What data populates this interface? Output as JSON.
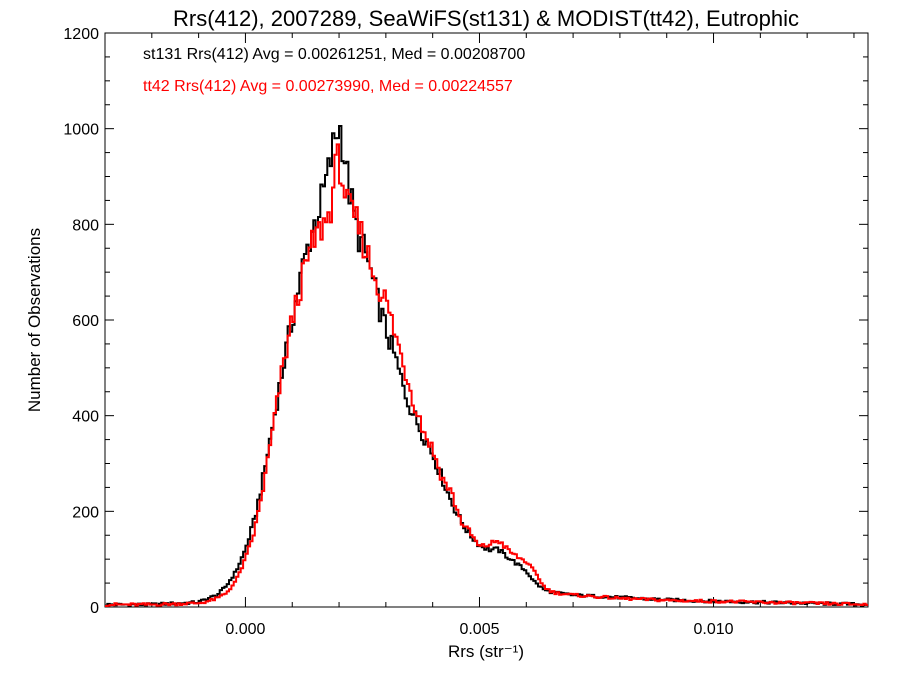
{
  "colors": {
    "series_1": "#000000",
    "series_2": "#ff0000"
  },
  "chart_data": {
    "type": "histogram-step",
    "title": "Rrs(412), 2007289, SeaWiFS(st131) & MODIST(tt42), Eutrophic",
    "xlabel": "Rrs (str⁻¹)",
    "ylabel": "Number of Observations",
    "xlim": [
      -0.003,
      0.0133
    ],
    "ylim": [
      0,
      1200
    ],
    "xticks": [
      0.0,
      0.005,
      0.01
    ],
    "xtick_labels": [
      "0.000",
      "0.005",
      "0.010"
    ],
    "yticks": [
      0,
      200,
      400,
      600,
      800,
      1000,
      1200
    ],
    "ytick_labels": [
      "0",
      "200",
      "400",
      "600",
      "800",
      "1000",
      "1200"
    ],
    "grid": false,
    "legend_position": "top-left",
    "legend_entries": [
      "st131 Rrs(412) Avg = 0.00261251, Med = 0.00208700",
      "tt42 Rrs(412) Avg = 0.00273990, Med = 0.00224557"
    ],
    "series": [
      {
        "name": "st131",
        "color": "#000000",
        "x": [
          -0.003,
          -0.002,
          -0.001,
          -0.0008,
          -0.0006,
          -0.0004,
          -0.0002,
          0.0,
          0.0002,
          0.0004,
          0.0006,
          0.0008,
          0.001,
          0.0012,
          0.0014,
          0.0016,
          0.0018,
          0.0019,
          0.002,
          0.0021,
          0.0022,
          0.0024,
          0.0026,
          0.0028,
          0.003,
          0.0032,
          0.0034,
          0.0036,
          0.0038,
          0.004,
          0.0042,
          0.0044,
          0.0046,
          0.0048,
          0.005,
          0.0052,
          0.0054,
          0.0056,
          0.0058,
          0.006,
          0.0062,
          0.0064,
          0.0066,
          0.007,
          0.008,
          0.009,
          0.01,
          0.011,
          0.012,
          0.0133
        ],
        "y": [
          5,
          5,
          10,
          18,
          25,
          45,
          75,
          120,
          185,
          280,
          390,
          500,
          600,
          700,
          780,
          840,
          920,
          975,
          1010,
          960,
          880,
          780,
          730,
          650,
          580,
          520,
          450,
          400,
          360,
          320,
          270,
          220,
          180,
          150,
          130,
          120,
          120,
          105,
          90,
          75,
          50,
          35,
          30,
          25,
          20,
          15,
          12,
          10,
          8,
          5
        ]
      },
      {
        "name": "tt42",
        "color": "#ff0000",
        "x": [
          -0.003,
          -0.002,
          -0.001,
          -0.0008,
          -0.0006,
          -0.0004,
          -0.0002,
          0.0,
          0.0002,
          0.0004,
          0.0006,
          0.0008,
          0.001,
          0.0012,
          0.0014,
          0.0016,
          0.0018,
          0.0019,
          0.002,
          0.0021,
          0.0022,
          0.0024,
          0.0026,
          0.0028,
          0.003,
          0.0032,
          0.0034,
          0.0036,
          0.0038,
          0.004,
          0.0042,
          0.0044,
          0.0046,
          0.0048,
          0.005,
          0.0052,
          0.0054,
          0.0056,
          0.0058,
          0.006,
          0.0062,
          0.0064,
          0.0066,
          0.007,
          0.008,
          0.009,
          0.01,
          0.011,
          0.012,
          0.0133
        ],
        "y": [
          5,
          5,
          8,
          12,
          18,
          30,
          55,
          100,
          160,
          260,
          380,
          500,
          600,
          680,
          750,
          790,
          820,
          900,
          940,
          880,
          830,
          800,
          740,
          680,
          640,
          570,
          500,
          430,
          370,
          330,
          270,
          240,
          180,
          155,
          125,
          130,
          140,
          120,
          105,
          95,
          70,
          40,
          30,
          25,
          18,
          14,
          12,
          10,
          8,
          5
        ]
      }
    ]
  }
}
